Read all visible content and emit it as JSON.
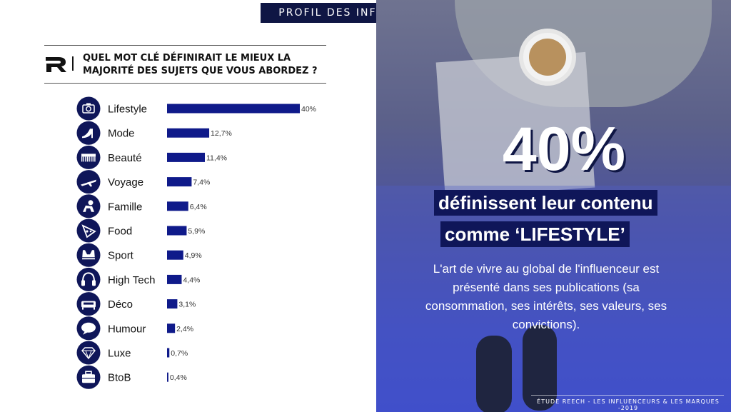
{
  "header": {
    "title": "PROFIL DES INFLUENCEURS"
  },
  "question": {
    "line1": "QUEL MOT CLÉ DÉFINIRAIT LE MIEUX LA",
    "line2": "MAJORITÉ DES SUJETS QUE VOUS ABORDEZ ?"
  },
  "colors": {
    "navy": "#0f1659",
    "bar": "#0f1a8a"
  },
  "chart_data": {
    "type": "bar",
    "orientation": "horizontal",
    "categories": [
      "Lifestyle",
      "Mode",
      "Beauté",
      "Voyage",
      "Famille",
      "Food",
      "Sport",
      "High Tech",
      "Déco",
      "Humour",
      "Luxe",
      "BtoB"
    ],
    "values": [
      40,
      12.7,
      11.4,
      7.4,
      6.4,
      5.9,
      4.9,
      4.4,
      3.1,
      2.4,
      0.7,
      0.4
    ],
    "value_labels": [
      "40%",
      "12,7%",
      "11,4%",
      "7,4%",
      "6,4%",
      "5,9%",
      "4,9%",
      "4,4%",
      "3,1%",
      "2,4%",
      "0,7%",
      "0,4%"
    ],
    "icons": [
      "camera-icon",
      "high-heel-icon",
      "comb-icon",
      "airplane-icon",
      "baby-icon",
      "pizza-icon",
      "sports-bra-icon",
      "headphones-icon",
      "sofa-icon",
      "speech-bubble-icon",
      "diamond-icon",
      "briefcase-icon"
    ],
    "title": "QUEL MOT CLÉ DÉFINIRAIT LE MIEUX LA MAJORITÉ DES SUJETS QUE VOUS ABORDEZ ?",
    "xlim": [
      0,
      40
    ],
    "grid": false,
    "legend": "none"
  },
  "highlight": {
    "big_value": "40%",
    "line1": "définissent leur contenu",
    "line2": "comme ‘LIFESTYLE’",
    "description": "L'art de vivre au global de l'influenceur est présenté dans ses publications (sa consommation, ses intérêts, ses valeurs, ses convictions)."
  },
  "footer": {
    "text": "ÉTUDE REECH - LES INFLUENCEURS & LES MARQUES -2019"
  }
}
